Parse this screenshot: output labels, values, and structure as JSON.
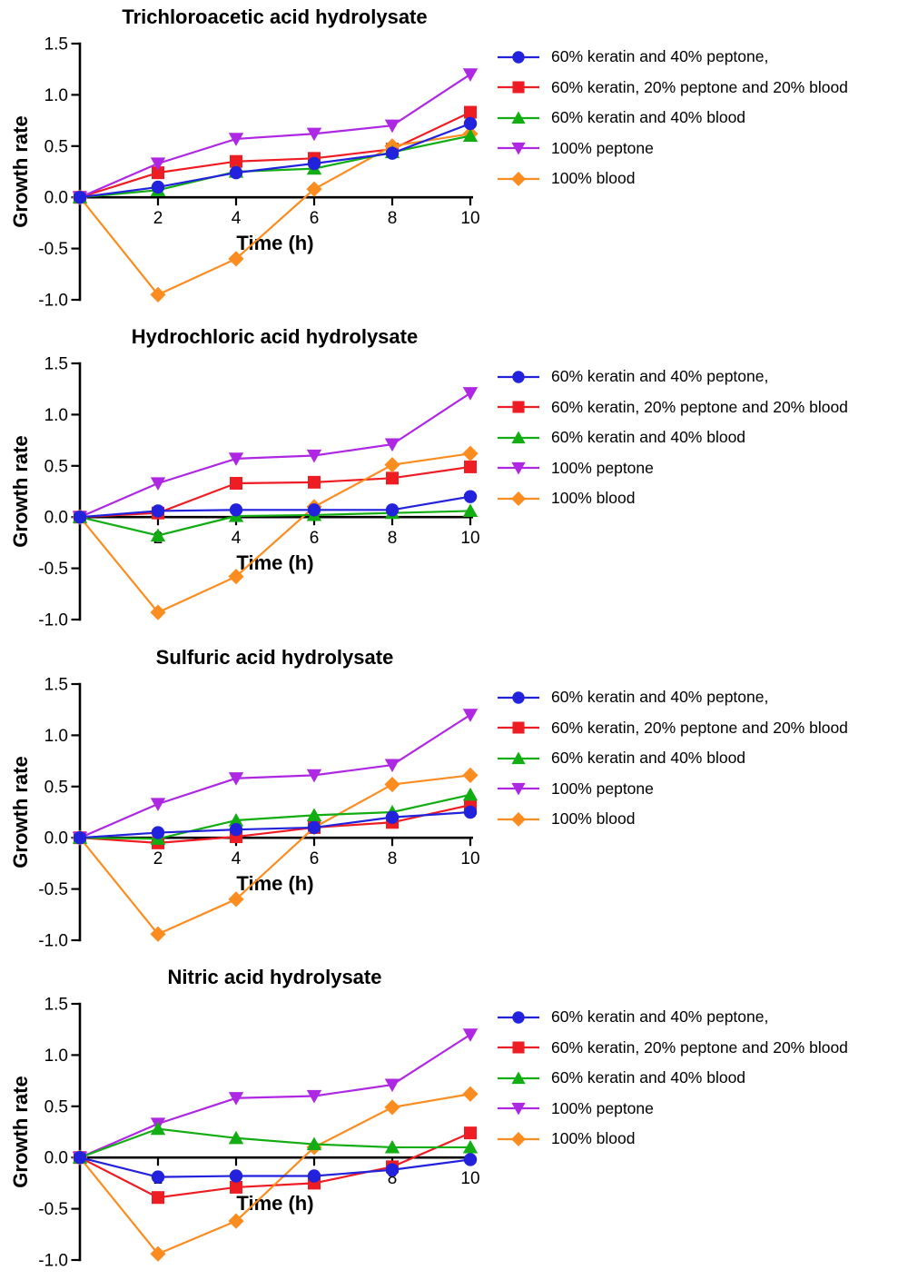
{
  "axes": {
    "ylabel": "Growth rate",
    "xlabel": "Time (h)",
    "x_tick_labels": [
      "2",
      "4",
      "6",
      "8",
      "10"
    ],
    "y_tick_labels": [
      "1.5",
      "1.0",
      "0.5",
      "0.0",
      "-0.5",
      "-1.0"
    ]
  },
  "legend": {
    "position": "right",
    "entries": [
      {
        "label": "60% keratin and 40% peptone,",
        "marker": "circle",
        "color": "#2222dd"
      },
      {
        "label": "60% keratin, 20% peptone and 20% blood",
        "marker": "square",
        "color": "#ee1c23"
      },
      {
        "label": "60% keratin and 40% blood",
        "marker": "triangle-up",
        "color": "#12ad12"
      },
      {
        "label": "100% peptone",
        "marker": "triangle-down",
        "color": "#ae27e2"
      },
      {
        "label": "100% blood",
        "marker": "diamond",
        "color": "#fb8c20"
      }
    ]
  },
  "chart_data": [
    {
      "type": "line",
      "title": "Trichloroacetic acid hydrolysate",
      "xlabel": "Time (h)",
      "ylabel": "Growth rate",
      "x": [
        0,
        2,
        4,
        6,
        8,
        10
      ],
      "xlim": [
        0,
        10
      ],
      "ylim": [
        -1.0,
        1.5
      ],
      "x_ticks": [
        2,
        4,
        6,
        8,
        10
      ],
      "y_ticks": [
        1.5,
        1.0,
        0.5,
        0.0,
        -0.5,
        -1.0
      ],
      "grid": false,
      "legend_position": "right",
      "series": [
        {
          "name": "60% keratin and 40% peptone,",
          "marker": "circle",
          "color": "#2222dd",
          "values": [
            0,
            0.1,
            0.24,
            0.33,
            0.43,
            0.72
          ]
        },
        {
          "name": "60% keratin, 20% peptone and 20% blood",
          "marker": "square",
          "color": "#ee1c23",
          "values": [
            0,
            0.24,
            0.35,
            0.38,
            0.47,
            0.83
          ]
        },
        {
          "name": "60% keratin and 40% blood",
          "marker": "triangle-up",
          "color": "#12ad12",
          "values": [
            0,
            0.07,
            0.25,
            0.28,
            0.44,
            0.6
          ]
        },
        {
          "name": "100% peptone",
          "marker": "triangle-down",
          "color": "#ae27e2",
          "values": [
            0,
            0.33,
            0.57,
            0.62,
            0.7,
            1.2
          ]
        },
        {
          "name": "100% blood",
          "marker": "diamond",
          "color": "#fb8c20",
          "values": [
            0,
            -0.95,
            -0.6,
            0.08,
            0.5,
            0.62
          ]
        }
      ]
    },
    {
      "type": "line",
      "title": "Hydrochloric acid hydrolysate",
      "xlabel": "Time (h)",
      "ylabel": "Growth rate",
      "x": [
        0,
        2,
        4,
        6,
        8,
        10
      ],
      "xlim": [
        0,
        10
      ],
      "ylim": [
        -1.0,
        1.5
      ],
      "x_ticks": [
        2,
        4,
        6,
        8,
        10
      ],
      "y_ticks": [
        1.5,
        1.0,
        0.5,
        0.0,
        -0.5,
        -1.0
      ],
      "grid": false,
      "legend_position": "right",
      "series": [
        {
          "name": "60% keratin and 40% peptone,",
          "marker": "circle",
          "color": "#2222dd",
          "values": [
            0,
            0.06,
            0.07,
            0.07,
            0.07,
            0.2
          ]
        },
        {
          "name": "60% keratin, 20% peptone and 20% blood",
          "marker": "square",
          "color": "#ee1c23",
          "values": [
            0,
            0.04,
            0.33,
            0.34,
            0.38,
            0.49
          ]
        },
        {
          "name": "60% keratin and 40% blood",
          "marker": "triangle-up",
          "color": "#12ad12",
          "values": [
            0,
            -0.18,
            0.01,
            0.02,
            0.04,
            0.06
          ]
        },
        {
          "name": "100% peptone",
          "marker": "triangle-down",
          "color": "#ae27e2",
          "values": [
            0,
            0.33,
            0.57,
            0.6,
            0.71,
            1.21
          ]
        },
        {
          "name": "100% blood",
          "marker": "diamond",
          "color": "#fb8c20",
          "values": [
            0,
            -0.93,
            -0.58,
            0.1,
            0.51,
            0.62
          ]
        }
      ]
    },
    {
      "type": "line",
      "title": "Sulfuric acid hydrolysate",
      "xlabel": "Time (h)",
      "ylabel": "Growth rate",
      "x": [
        0,
        2,
        4,
        6,
        8,
        10
      ],
      "xlim": [
        0,
        10
      ],
      "ylim": [
        -1.0,
        1.5
      ],
      "x_ticks": [
        2,
        4,
        6,
        8,
        10
      ],
      "y_ticks": [
        1.5,
        1.0,
        0.5,
        0.0,
        -0.5,
        -1.0
      ],
      "grid": false,
      "legend_position": "right",
      "series": [
        {
          "name": "60% keratin and 40% peptone,",
          "marker": "circle",
          "color": "#2222dd",
          "values": [
            0,
            0.05,
            0.08,
            0.1,
            0.2,
            0.25
          ]
        },
        {
          "name": "60% keratin, 20% peptone and 20% blood",
          "marker": "square",
          "color": "#ee1c23",
          "values": [
            0,
            -0.05,
            0.01,
            0.1,
            0.15,
            0.32
          ]
        },
        {
          "name": "60% keratin and 40% blood",
          "marker": "triangle-up",
          "color": "#12ad12",
          "values": [
            0,
            -0.01,
            0.17,
            0.22,
            0.25,
            0.42
          ]
        },
        {
          "name": "100% peptone",
          "marker": "triangle-down",
          "color": "#ae27e2",
          "values": [
            0,
            0.33,
            0.58,
            0.61,
            0.71,
            1.2
          ]
        },
        {
          "name": "100% blood",
          "marker": "diamond",
          "color": "#fb8c20",
          "values": [
            0,
            -0.94,
            -0.6,
            0.1,
            0.52,
            0.61
          ]
        }
      ]
    },
    {
      "type": "line",
      "title": "Nitric acid hydrolysate",
      "xlabel": "Time (h)",
      "ylabel": "Growth rate",
      "x": [
        0,
        2,
        4,
        6,
        8,
        10
      ],
      "xlim": [
        0,
        10
      ],
      "ylim": [
        -1.0,
        1.5
      ],
      "x_ticks": [
        2,
        4,
        6,
        8,
        10
      ],
      "y_ticks": [
        1.5,
        1.0,
        0.5,
        0.0,
        -0.5,
        -1.0
      ],
      "grid": false,
      "legend_position": "right",
      "series": [
        {
          "name": "60% keratin and 40% peptone,",
          "marker": "circle",
          "color": "#2222dd",
          "values": [
            0,
            -0.19,
            -0.18,
            -0.18,
            -0.12,
            -0.02
          ]
        },
        {
          "name": "60% keratin, 20% peptone and 20% blood",
          "marker": "square",
          "color": "#ee1c23",
          "values": [
            0,
            -0.39,
            -0.29,
            -0.25,
            -0.09,
            0.24
          ]
        },
        {
          "name": "60% keratin and 40% blood",
          "marker": "triangle-up",
          "color": "#12ad12",
          "values": [
            0,
            0.28,
            0.19,
            0.13,
            0.1,
            0.1
          ]
        },
        {
          "name": "100% peptone",
          "marker": "triangle-down",
          "color": "#ae27e2",
          "values": [
            0,
            0.33,
            0.58,
            0.6,
            0.71,
            1.2
          ]
        },
        {
          "name": "100% blood",
          "marker": "diamond",
          "color": "#fb8c20",
          "values": [
            0,
            -0.94,
            -0.62,
            0.1,
            0.49,
            0.62
          ]
        }
      ]
    }
  ]
}
